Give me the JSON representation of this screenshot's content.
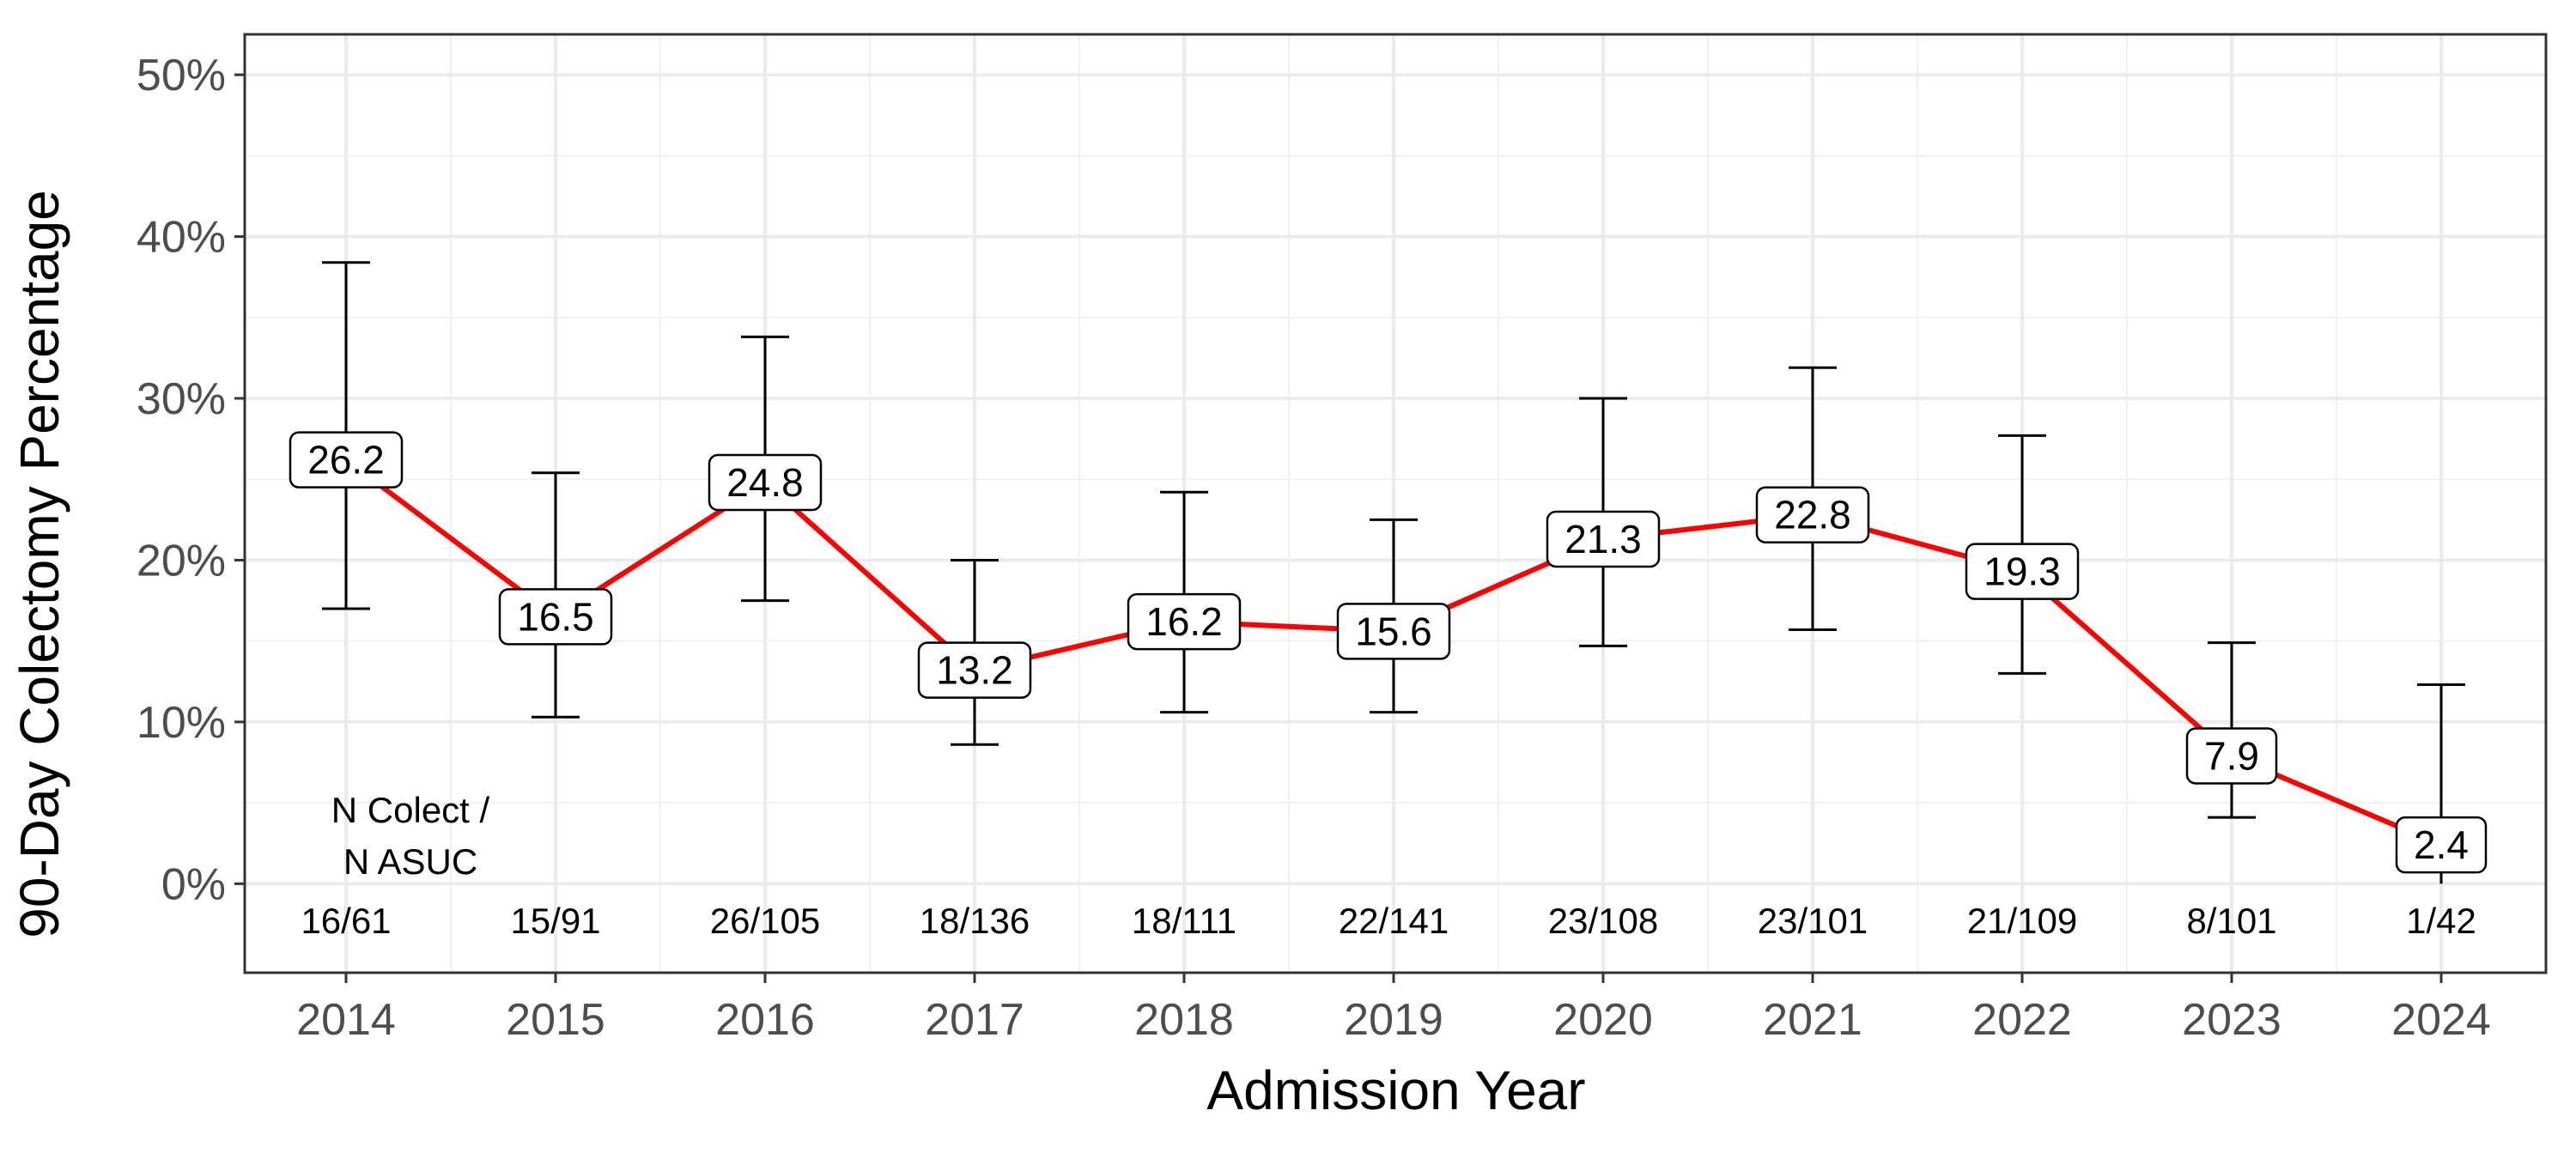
{
  "chart_data": {
    "type": "line",
    "xlabel": "Admission Year",
    "ylabel": "90-Day Colectomy Percentage",
    "x": [
      "2014",
      "2015",
      "2016",
      "2017",
      "2018",
      "2019",
      "2020",
      "2021",
      "2022",
      "2023",
      "2024"
    ],
    "series": [
      {
        "values": [
          26.2,
          16.5,
          24.8,
          13.2,
          16.2,
          15.6,
          21.3,
          22.8,
          19.3,
          7.9,
          2.4
        ],
        "point_labels": [
          "26.2",
          "16.5",
          "24.8",
          "13.2",
          "16.2",
          "15.6",
          "21.3",
          "22.8",
          "19.3",
          "7.9",
          "2.4"
        ],
        "ci_lower": [
          17.0,
          10.3,
          17.5,
          8.6,
          10.6,
          10.6,
          14.7,
          15.7,
          13.0,
          4.1,
          0.0
        ],
        "ci_upper": [
          38.4,
          25.4,
          33.8,
          20.0,
          24.2,
          22.5,
          30.0,
          31.9,
          27.7,
          14.9,
          12.3
        ],
        "color": "#ff0000"
      }
    ],
    "counts_header": [
      "N Colect /",
      "N ASUC"
    ],
    "counts": [
      "16/61",
      "15/91",
      "26/105",
      "18/136",
      "18/111",
      "22/141",
      "23/108",
      "23/101",
      "21/109",
      "8/101",
      "1/42"
    ],
    "y_ticks": [
      0,
      10,
      20,
      30,
      40,
      50
    ],
    "y_tick_labels": [
      "0%",
      "10%",
      "20%",
      "30%",
      "40%",
      "50%"
    ],
    "ylim": [
      -5.5,
      52.5
    ],
    "grid": true
  }
}
